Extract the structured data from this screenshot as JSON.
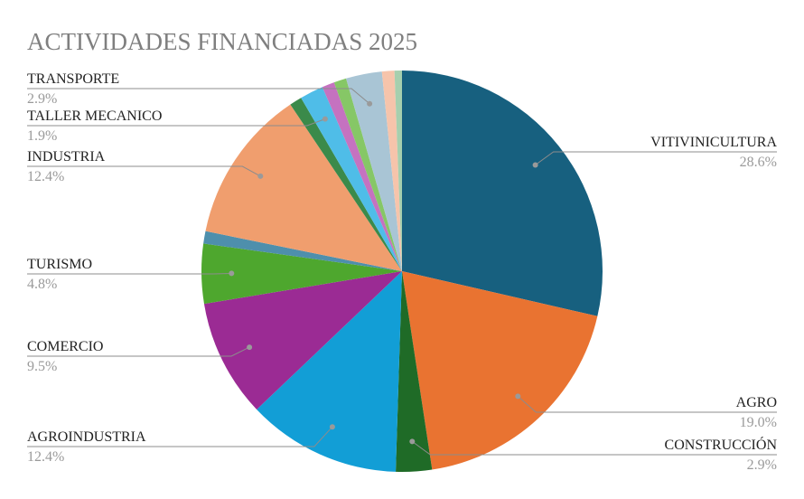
{
  "chart_data": {
    "type": "pie",
    "title": "ACTIVIDADES FINANCIADAS 2025",
    "start_angle_deg": 0,
    "direction": "clockwise",
    "slices": [
      {
        "name": "VITIVINICULTURA",
        "value": 28.6,
        "color": "#17607f",
        "label": "28.6%"
      },
      {
        "name": "AGRO",
        "value": 19.0,
        "color": "#e97331",
        "label": "19.0%"
      },
      {
        "name": "CONSTRUCCIÓN",
        "value": 2.9,
        "color": "#1f6b27",
        "label": "2.9%"
      },
      {
        "name": "AGROINDUSTRIA",
        "value": 12.4,
        "color": "#129ed6",
        "label": "12.4%"
      },
      {
        "name": "COMERCIO",
        "value": 9.5,
        "color": "#9b2b94",
        "label": "9.5%"
      },
      {
        "name": "TURISMO",
        "value": 4.8,
        "color": "#4ea72e",
        "label": "4.8%"
      },
      {
        "name": "",
        "value": 1.0,
        "color": "#4e8fac",
        "label": ""
      },
      {
        "name": "INDUSTRIA",
        "value": 12.4,
        "color": "#f09e6e",
        "label": "12.4%"
      },
      {
        "name": "",
        "value": 1.0,
        "color": "#3b8a4a",
        "label": ""
      },
      {
        "name": "TALLER MECANICO",
        "value": 1.9,
        "color": "#4fbde8",
        "label": "1.9%"
      },
      {
        "name": "",
        "value": 1.0,
        "color": "#c572c0",
        "label": ""
      },
      {
        "name": "",
        "value": 1.0,
        "color": "#86c766",
        "label": ""
      },
      {
        "name": "TRANSPORTE",
        "value": 2.9,
        "color": "#a9c5d5",
        "label": "2.9%"
      },
      {
        "name": "",
        "value": 1.0,
        "color": "#f6c4ab",
        "label": ""
      },
      {
        "name": "",
        "value": 0.6,
        "color": "#a6cfae",
        "label": ""
      }
    ]
  }
}
